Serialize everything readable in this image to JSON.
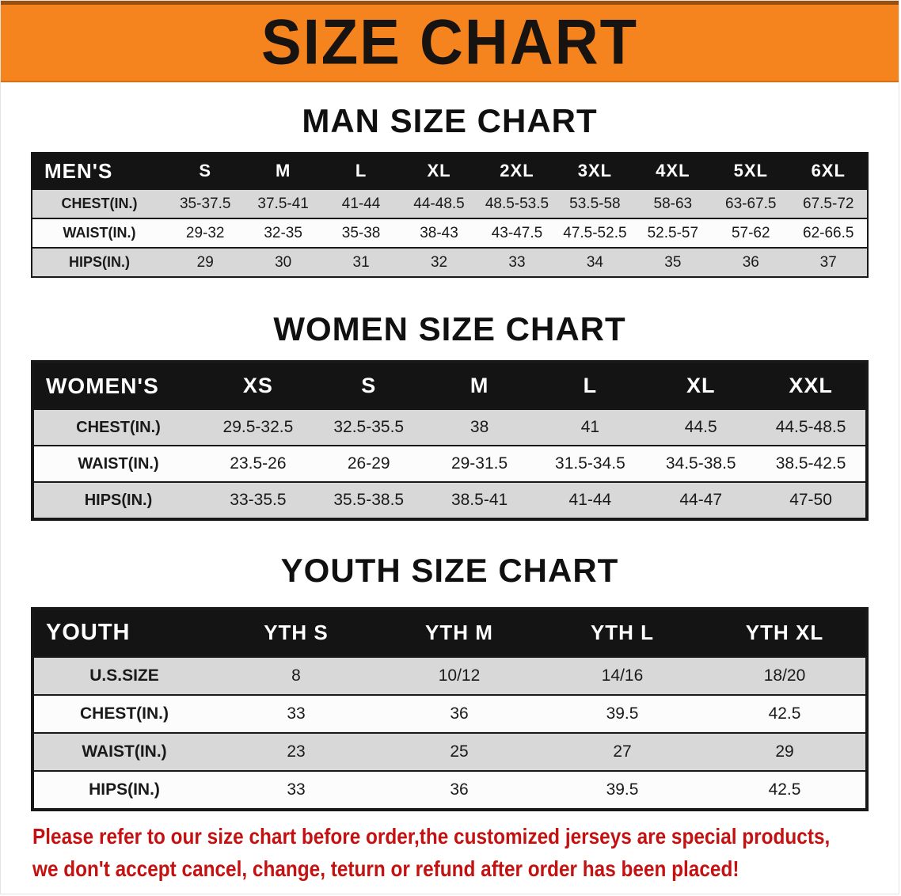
{
  "banner": {
    "title": "SIZE CHART"
  },
  "sections": [
    {
      "id": "men",
      "heading": "MAN SIZE CHART",
      "table": {
        "header": [
          "MEN'S",
          "S",
          "M",
          "L",
          "XL",
          "2XL",
          "3XL",
          "4XL",
          "5XL",
          "6XL"
        ],
        "rows": [
          [
            "CHEST(IN.)",
            "35-37.5",
            "37.5-41",
            "41-44",
            "44-48.5",
            "48.5-53.5",
            "53.5-58",
            "58-63",
            "63-67.5",
            "67.5-72"
          ],
          [
            "WAIST(IN.)",
            "29-32",
            "32-35",
            "35-38",
            "38-43",
            "43-47.5",
            "47.5-52.5",
            "52.5-57",
            "57-62",
            "62-66.5"
          ],
          [
            "HIPS(IN.)",
            "29",
            "30",
            "31",
            "32",
            "33",
            "34",
            "35",
            "36",
            "37"
          ]
        ]
      }
    },
    {
      "id": "women",
      "heading": "WOMEN SIZE CHART",
      "table": {
        "header": [
          "WOMEN'S",
          "XS",
          "S",
          "M",
          "L",
          "XL",
          "XXL"
        ],
        "rows": [
          [
            "CHEST(IN.)",
            "29.5-32.5",
            "32.5-35.5",
            "38",
            "41",
            "44.5",
            "44.5-48.5"
          ],
          [
            "WAIST(IN.)",
            "23.5-26",
            "26-29",
            "29-31.5",
            "31.5-34.5",
            "34.5-38.5",
            "38.5-42.5"
          ],
          [
            "HIPS(IN.)",
            "33-35.5",
            "35.5-38.5",
            "38.5-41",
            "41-44",
            "44-47",
            "47-50"
          ]
        ]
      }
    },
    {
      "id": "youth",
      "heading": "YOUTH SIZE CHART",
      "table": {
        "header": [
          "YOUTH",
          "YTH S",
          "YTH M",
          "YTH L",
          "YTH XL"
        ],
        "rows": [
          [
            "U.S.SIZE",
            "8",
            "10/12",
            "14/16",
            "18/20"
          ],
          [
            "CHEST(IN.)",
            "33",
            "36",
            "39.5",
            "42.5"
          ],
          [
            "WAIST(IN.)",
            "23",
            "25",
            "27",
            "29"
          ],
          [
            "HIPS(IN.)",
            "33",
            "36",
            "39.5",
            "42.5"
          ]
        ]
      }
    }
  ],
  "footer": {
    "line1": "Please refer to our size chart before order,the customized jerseys are special products,",
    "line2": "we don't accept cancel, change, teturn or refund after order has been placed!"
  },
  "colors": {
    "banner_bg": "#f5831e",
    "header_bg": "#141414",
    "shade_row": "#d8d8d8",
    "notice_red": "#c41212"
  }
}
